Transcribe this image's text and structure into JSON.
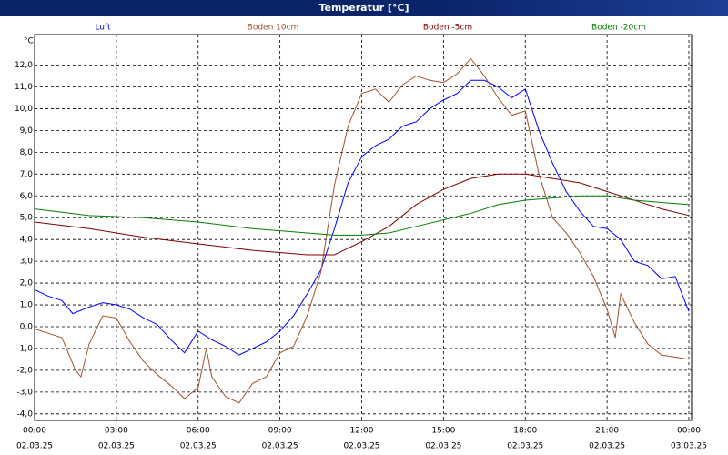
{
  "chart_data": {
    "type": "line",
    "title": "Temperatur [°C]",
    "y_unit": "°C",
    "grid": true,
    "xlim": [
      0,
      24.1
    ],
    "ylim": [
      -4.3,
      13.4
    ],
    "xticks": [
      {
        "value": 0,
        "label": "00:00"
      },
      {
        "value": 3,
        "label": "03:00"
      },
      {
        "value": 6,
        "label": "06:00"
      },
      {
        "value": 9,
        "label": "09:00"
      },
      {
        "value": 12,
        "label": "12:00"
      },
      {
        "value": 15,
        "label": "15:00"
      },
      {
        "value": 18,
        "label": "18:00"
      },
      {
        "value": 21,
        "label": "21:00"
      },
      {
        "value": 24,
        "label": "00:00"
      }
    ],
    "xtick_dates": [
      "02.03.25",
      "02.03.25",
      "02.03.25",
      "02.03.25",
      "02.03.25",
      "02.03.25",
      "02.03.25",
      "02.03.25",
      "03.03.25"
    ],
    "yticks": [
      {
        "value": -4,
        "label": "-4,0"
      },
      {
        "value": -3,
        "label": "-3,0"
      },
      {
        "value": -2,
        "label": "-2,0"
      },
      {
        "value": -1,
        "label": "-1,0"
      },
      {
        "value": 0,
        "label": "0,0"
      },
      {
        "value": 1,
        "label": "1,0"
      },
      {
        "value": 2,
        "label": "2,0"
      },
      {
        "value": 3,
        "label": "3,0"
      },
      {
        "value": 4,
        "label": "4,0"
      },
      {
        "value": 5,
        "label": "5,0"
      },
      {
        "value": 6,
        "label": "6,0"
      },
      {
        "value": 7,
        "label": "7,0"
      },
      {
        "value": 8,
        "label": "8,0"
      },
      {
        "value": 9,
        "label": "9,0"
      },
      {
        "value": 10,
        "label": "10,0"
      },
      {
        "value": 11,
        "label": "11,0"
      },
      {
        "value": 12,
        "label": "12,0"
      }
    ],
    "series": [
      {
        "name": "Luft",
        "color": "#0000ff",
        "x": [
          0,
          0.5,
          1,
          1.4,
          2,
          2.5,
          3,
          3.5,
          4,
          4.5,
          5,
          5.5,
          6,
          6.5,
          7,
          7.5,
          8,
          8.5,
          9,
          9.5,
          10,
          10.5,
          11,
          11.5,
          12,
          12.5,
          13,
          13.5,
          14,
          14.5,
          15,
          15.5,
          16,
          16.5,
          17,
          17.5,
          18,
          18.5,
          19,
          19.5,
          20,
          20.5,
          21,
          21.5,
          22,
          22.5,
          23,
          23.5,
          24
        ],
        "values": [
          1.7,
          1.4,
          1.2,
          0.6,
          0.9,
          1.1,
          1.0,
          0.8,
          0.4,
          0.1,
          -0.6,
          -1.2,
          -0.2,
          -0.6,
          -0.9,
          -1.3,
          -1.0,
          -0.7,
          -0.2,
          0.5,
          1.5,
          2.6,
          4.5,
          6.6,
          7.8,
          8.3,
          8.6,
          9.2,
          9.4,
          10.0,
          10.4,
          10.7,
          11.3,
          11.3,
          11.0,
          10.5,
          10.9,
          9.0,
          7.5,
          6.2,
          5.3,
          4.6,
          4.5,
          4.0,
          3.0,
          2.8,
          2.2,
          2.3,
          0.7
        ]
      },
      {
        "name": "Boden 10cm",
        "color": "#a0522d",
        "x": [
          0,
          0.5,
          1,
          1.5,
          1.7,
          2,
          2.5,
          3,
          3.5,
          4,
          4.5,
          5,
          5.5,
          6,
          6.3,
          6.5,
          7,
          7.5,
          8,
          8.5,
          9,
          9.5,
          10,
          10.5,
          11,
          11.5,
          12,
          12.5,
          13,
          13.5,
          14,
          14.5,
          15,
          15.5,
          16,
          16.5,
          17,
          17.5,
          18,
          18.5,
          19,
          19.5,
          20,
          20.5,
          21,
          21.3,
          21.5,
          22,
          22.5,
          23,
          23.5,
          24
        ],
        "values": [
          -0.1,
          -0.3,
          -0.5,
          -2.0,
          -2.3,
          -0.8,
          0.5,
          0.4,
          -0.7,
          -1.6,
          -2.2,
          -2.7,
          -3.3,
          -2.8,
          -1.0,
          -2.3,
          -3.2,
          -3.5,
          -2.6,
          -2.3,
          -1.2,
          -0.9,
          0.5,
          2.5,
          6.5,
          9.2,
          10.7,
          10.9,
          10.3,
          11.1,
          11.5,
          11.3,
          11.2,
          11.6,
          12.3,
          11.5,
          10.5,
          9.7,
          9.9,
          7.0,
          5.0,
          4.3,
          3.4,
          2.3,
          0.8,
          -0.5,
          1.5,
          0.2,
          -0.8,
          -1.3,
          -1.4,
          -1.5
        ]
      },
      {
        "name": "Boden -5cm",
        "color": "#800000",
        "x": [
          0,
          2,
          4,
          6,
          8,
          9,
          10,
          11,
          11.5,
          12,
          13,
          14,
          15,
          16,
          17,
          18,
          19,
          20,
          21,
          22,
          23,
          24
        ],
        "values": [
          4.8,
          4.5,
          4.1,
          3.8,
          3.5,
          3.4,
          3.3,
          3.3,
          3.6,
          3.9,
          4.6,
          5.6,
          6.3,
          6.8,
          7.0,
          7.0,
          6.8,
          6.6,
          6.2,
          5.8,
          5.4,
          5.1
        ]
      },
      {
        "name": "Boden -20cm",
        "color": "#008000",
        "x": [
          0,
          2,
          4,
          6,
          8,
          10,
          11,
          12,
          13,
          14,
          15,
          16,
          17,
          18,
          19,
          20,
          21,
          22,
          23,
          24
        ],
        "values": [
          5.4,
          5.1,
          5.0,
          4.8,
          4.5,
          4.3,
          4.2,
          4.2,
          4.3,
          4.6,
          4.9,
          5.2,
          5.6,
          5.8,
          5.9,
          6.0,
          6.0,
          5.8,
          5.7,
          5.6
        ]
      }
    ]
  }
}
